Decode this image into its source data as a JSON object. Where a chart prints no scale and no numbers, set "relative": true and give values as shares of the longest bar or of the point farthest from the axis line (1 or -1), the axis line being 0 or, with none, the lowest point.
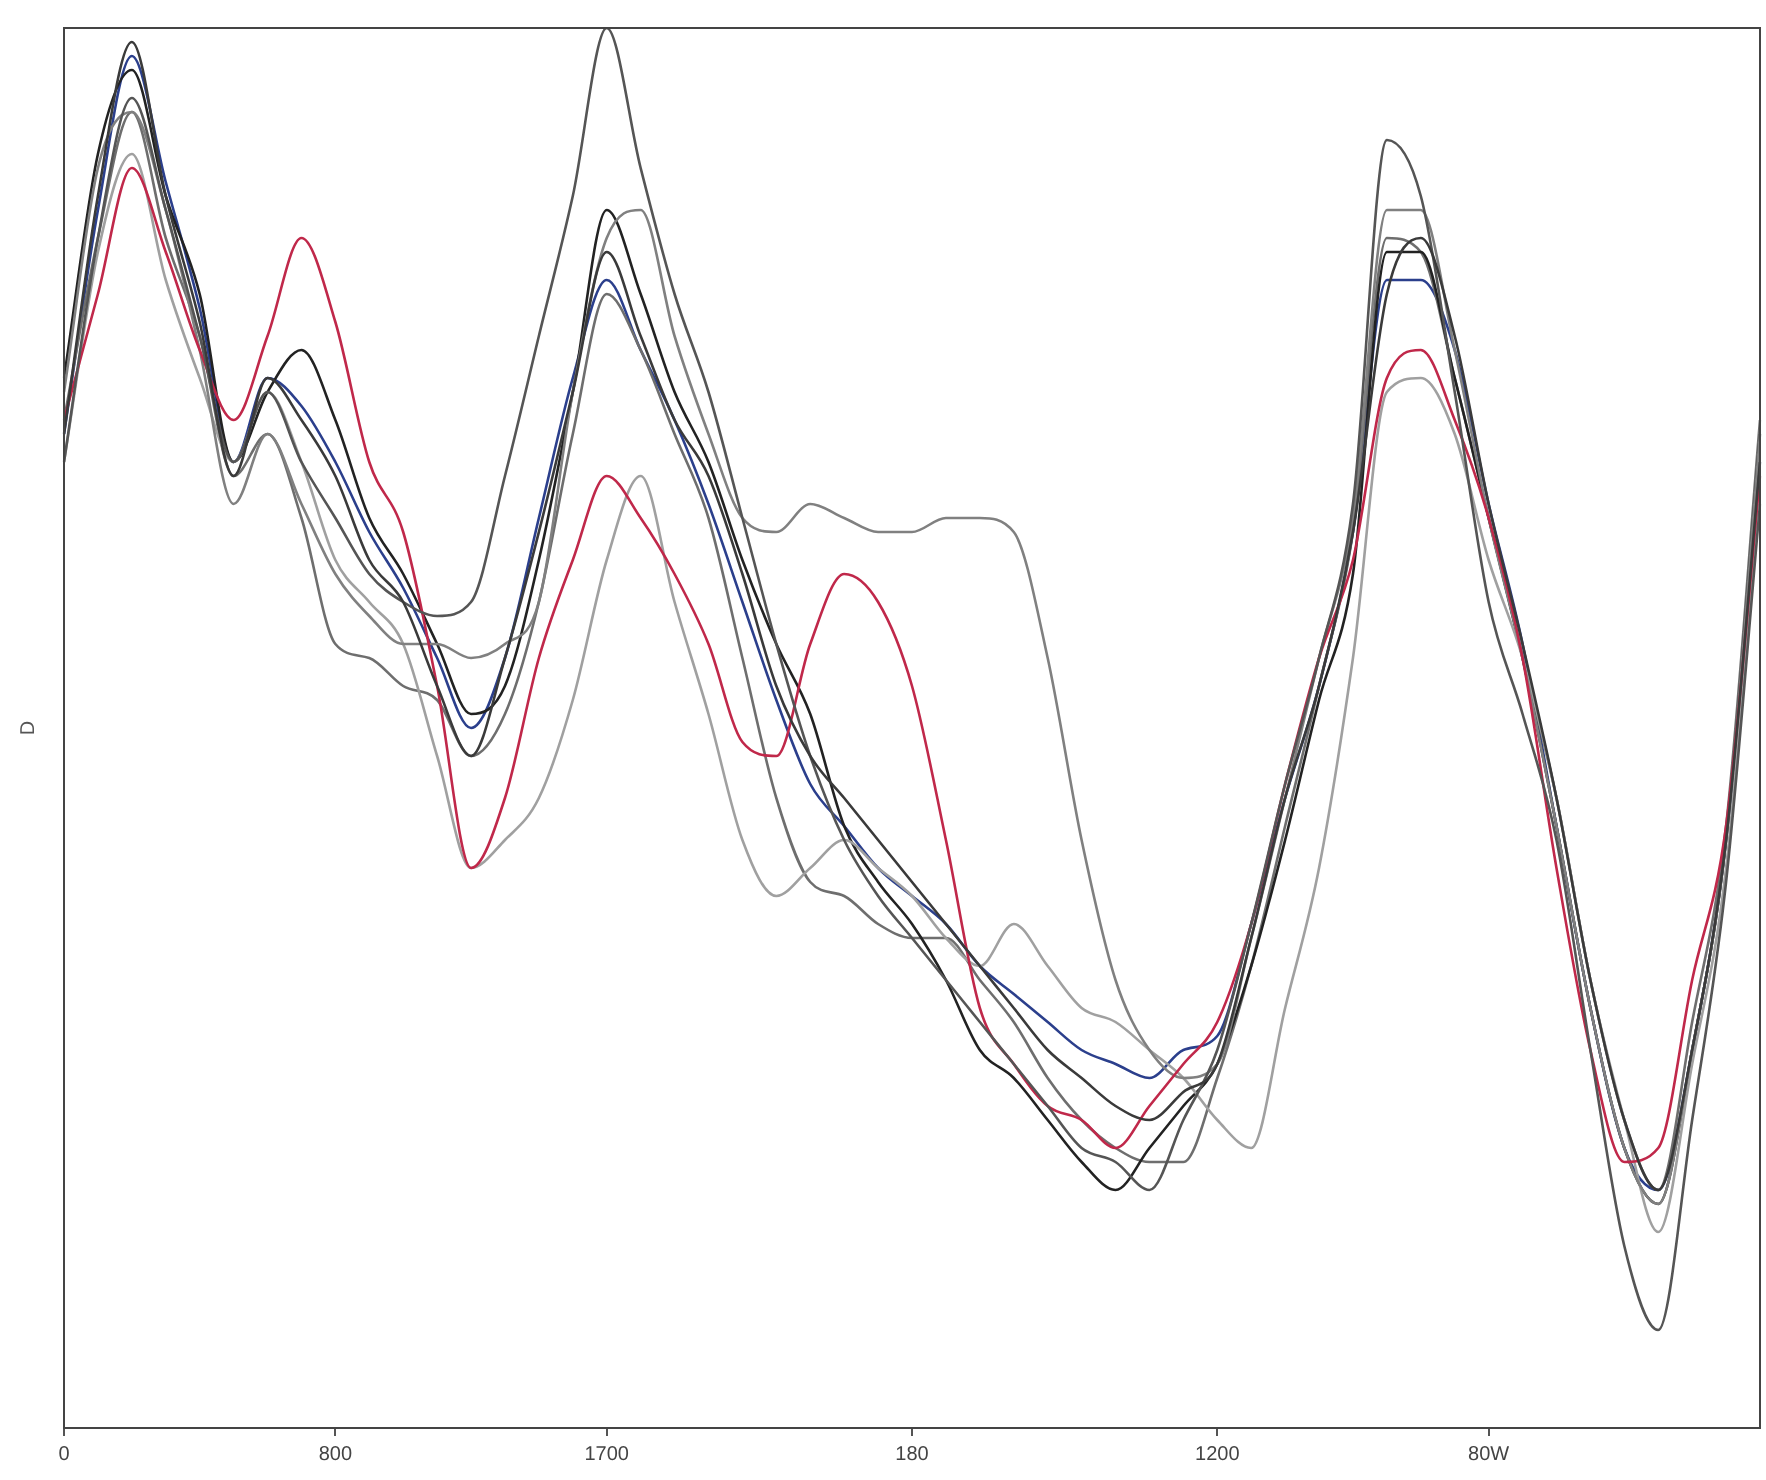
{
  "chart_data": {
    "type": "line",
    "relative": true,
    "ylabel": "D",
    "legend": false,
    "grid": false,
    "marker": "none",
    "line_style": "solid",
    "categories": [
      "0",
      null,
      null,
      null,
      null,
      null,
      null,
      null,
      "800",
      null,
      null,
      null,
      null,
      null,
      null,
      null,
      "1700",
      null,
      null,
      null,
      null,
      null,
      null,
      null,
      null,
      "180",
      null,
      null,
      null,
      null,
      null,
      null,
      null,
      null,
      "1200",
      null,
      null,
      null,
      null,
      null,
      null,
      null,
      "80W",
      null,
      null,
      null,
      null,
      null,
      null,
      null,
      null
    ],
    "series": [
      {
        "color": "#3a3a3a",
        "values": [
          0.71,
          0.88,
          0.99,
          0.88,
          0.79,
          0.68,
          0.75,
          0.72,
          0.68,
          0.62,
          0.59,
          0.53,
          0.48,
          0.55,
          0.64,
          0.74,
          0.84,
          0.78,
          0.72,
          0.68,
          0.61,
          0.53,
          0.48,
          0.45,
          0.42,
          0.39,
          0.36,
          0.33,
          0.3,
          0.27,
          0.25,
          0.23,
          0.22,
          0.24,
          0.26,
          0.35,
          0.45,
          0.53,
          0.64,
          0.81,
          0.85,
          0.78,
          0.66,
          0.56,
          0.45,
          0.32,
          0.22,
          0.17,
          0.27,
          0.42,
          0.69
        ]
      },
      {
        "color": "#555555",
        "values": [
          0.69,
          0.85,
          0.95,
          0.87,
          0.78,
          0.69,
          0.74,
          0.69,
          0.65,
          0.61,
          0.59,
          0.58,
          0.59,
          0.68,
          0.78,
          0.88,
          1.0,
          0.9,
          0.81,
          0.74,
          0.65,
          0.56,
          0.48,
          0.42,
          0.38,
          0.35,
          0.32,
          0.29,
          0.26,
          0.23,
          0.2,
          0.19,
          0.17,
          0.22,
          0.27,
          0.36,
          0.46,
          0.55,
          0.66,
          0.92,
          0.88,
          0.74,
          0.59,
          0.51,
          0.42,
          0.27,
          0.13,
          0.07,
          0.22,
          0.39,
          0.66
        ]
      },
      {
        "color": "#c0284a",
        "values": [
          0.72,
          0.81,
          0.9,
          0.84,
          0.77,
          0.72,
          0.78,
          0.85,
          0.79,
          0.69,
          0.64,
          0.53,
          0.4,
          0.45,
          0.55,
          0.62,
          0.68,
          0.65,
          0.61,
          0.56,
          0.49,
          0.48,
          0.56,
          0.61,
          0.59,
          0.53,
          0.42,
          0.3,
          0.26,
          0.23,
          0.22,
          0.2,
          0.23,
          0.26,
          0.29,
          0.36,
          0.46,
          0.55,
          0.62,
          0.75,
          0.77,
          0.72,
          0.65,
          0.55,
          0.4,
          0.27,
          0.19,
          0.2,
          0.32,
          0.43,
          0.68
        ]
      },
      {
        "color": "#808080",
        "values": [
          0.74,
          0.9,
          0.94,
          0.87,
          0.77,
          0.66,
          0.71,
          0.66,
          0.61,
          0.58,
          0.56,
          0.56,
          0.55,
          0.56,
          0.59,
          0.74,
          0.85,
          0.87,
          0.78,
          0.71,
          0.65,
          0.64,
          0.66,
          0.65,
          0.64,
          0.64,
          0.65,
          0.65,
          0.64,
          0.55,
          0.42,
          0.32,
          0.27,
          0.25,
          0.26,
          0.35,
          0.45,
          0.55,
          0.65,
          0.87,
          0.87,
          0.77,
          0.65,
          0.55,
          0.43,
          0.3,
          0.2,
          0.16,
          0.27,
          0.42,
          0.71
        ]
      },
      {
        "color": "#a0a0a0",
        "values": [
          0.69,
          0.84,
          0.91,
          0.82,
          0.75,
          0.69,
          0.74,
          0.69,
          0.62,
          0.59,
          0.56,
          0.48,
          0.4,
          0.42,
          0.45,
          0.52,
          0.62,
          0.68,
          0.59,
          0.51,
          0.42,
          0.38,
          0.4,
          0.42,
          0.4,
          0.38,
          0.35,
          0.33,
          0.36,
          0.33,
          0.3,
          0.29,
          0.27,
          0.25,
          0.22,
          0.2,
          0.3,
          0.4,
          0.55,
          0.74,
          0.75,
          0.71,
          0.62,
          0.55,
          0.45,
          0.32,
          0.22,
          0.14,
          0.26,
          0.4,
          0.68
        ]
      },
      {
        "color": "#222222",
        "values": [
          0.75,
          0.91,
          0.97,
          0.88,
          0.81,
          0.69,
          0.74,
          0.77,
          0.72,
          0.65,
          0.61,
          0.56,
          0.51,
          0.53,
          0.62,
          0.74,
          0.87,
          0.81,
          0.74,
          0.69,
          0.62,
          0.56,
          0.51,
          0.43,
          0.39,
          0.36,
          0.32,
          0.27,
          0.25,
          0.22,
          0.19,
          0.17,
          0.2,
          0.23,
          0.26,
          0.33,
          0.42,
          0.52,
          0.61,
          0.84,
          0.84,
          0.75,
          0.65,
          0.55,
          0.43,
          0.3,
          0.2,
          0.16,
          0.27,
          0.42,
          0.71
        ]
      },
      {
        "color": "#6e6e6e",
        "values": [
          0.72,
          0.85,
          0.94,
          0.85,
          0.78,
          0.68,
          0.71,
          0.65,
          0.56,
          0.55,
          0.53,
          0.52,
          0.48,
          0.51,
          0.59,
          0.71,
          0.81,
          0.77,
          0.71,
          0.65,
          0.55,
          0.45,
          0.39,
          0.38,
          0.36,
          0.35,
          0.35,
          0.32,
          0.29,
          0.25,
          0.22,
          0.2,
          0.19,
          0.19,
          0.25,
          0.33,
          0.43,
          0.53,
          0.64,
          0.85,
          0.84,
          0.75,
          0.65,
          0.55,
          0.45,
          0.32,
          0.22,
          0.17,
          0.29,
          0.43,
          0.72
        ]
      },
      {
        "color": "#2b3f8c",
        "values": [
          0.71,
          0.87,
          0.98,
          0.89,
          0.8,
          0.69,
          0.75,
          0.73,
          0.69,
          0.64,
          0.6,
          0.55,
          0.5,
          0.55,
          0.65,
          0.75,
          0.82,
          0.77,
          0.72,
          0.66,
          0.59,
          0.52,
          0.46,
          0.43,
          0.4,
          0.38,
          0.36,
          0.33,
          0.31,
          0.29,
          0.27,
          0.26,
          0.25,
          0.27,
          0.28,
          0.36,
          0.45,
          0.53,
          0.64,
          0.82,
          0.82,
          0.77,
          0.66,
          0.56,
          0.43,
          0.3,
          0.2,
          0.17,
          0.27,
          0.42,
          0.69
        ]
      }
    ]
  }
}
